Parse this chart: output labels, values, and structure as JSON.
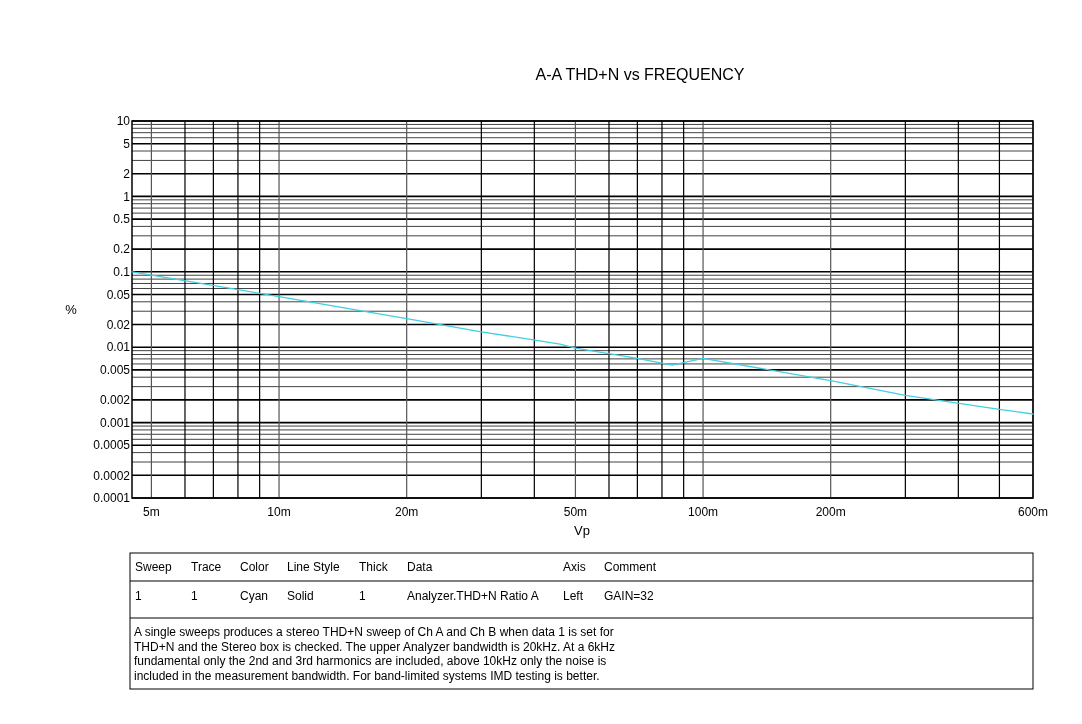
{
  "chart_data": {
    "type": "line",
    "title": "A-A THD+N vs FREQUENCY",
    "xlabel": "Vp",
    "ylabel": "%",
    "log": "xy",
    "grid": true,
    "line_style": "solid",
    "xlim": [
      4.5,
      600
    ],
    "xticks": [
      {
        "value": 5,
        "label": "5m"
      },
      {
        "value": 6,
        "label": null
      },
      {
        "value": 7,
        "label": null
      },
      {
        "value": 8,
        "label": null
      },
      {
        "value": 9,
        "label": null
      },
      {
        "value": 10,
        "label": "10m"
      },
      {
        "value": 20,
        "label": "20m"
      },
      {
        "value": 30,
        "label": null
      },
      {
        "value": 40,
        "label": null
      },
      {
        "value": 50,
        "label": "50m"
      },
      {
        "value": 60,
        "label": null
      },
      {
        "value": 70,
        "label": null
      },
      {
        "value": 80,
        "label": null
      },
      {
        "value": 90,
        "label": null
      },
      {
        "value": 100,
        "label": "100m"
      },
      {
        "value": 200,
        "label": "200m"
      },
      {
        "value": 300,
        "label": null
      },
      {
        "value": 400,
        "label": null
      },
      {
        "value": 500,
        "label": null
      },
      {
        "value": 600,
        "label": "600m"
      }
    ],
    "ylim": [
      0.0001,
      10
    ],
    "yticks": [
      0.0001,
      0.0002,
      {
        "value": 0.0003,
        "label": null
      },
      {
        "value": 0.0004,
        "label": null
      },
      0.0005,
      {
        "value": 0.0006,
        "label": null
      },
      {
        "value": 0.0007,
        "label": null
      },
      {
        "value": 0.0008,
        "label": null
      },
      {
        "value": 0.0009,
        "label": null
      },
      0.001,
      0.002,
      {
        "value": 0.003,
        "label": null
      },
      {
        "value": 0.004,
        "label": null
      },
      0.005,
      {
        "value": 0.006,
        "label": null
      },
      {
        "value": 0.007,
        "label": null
      },
      {
        "value": 0.008,
        "label": null
      },
      {
        "value": 0.009,
        "label": null
      },
      0.01,
      0.02,
      {
        "value": 0.03,
        "label": null
      },
      {
        "value": 0.04,
        "label": null
      },
      0.05,
      {
        "value": 0.06,
        "label": null
      },
      {
        "value": 0.07,
        "label": null
      },
      {
        "value": 0.08,
        "label": null
      },
      {
        "value": 0.09,
        "label": null
      },
      0.1,
      0.2,
      {
        "value": 0.3,
        "label": null
      },
      {
        "value": 0.4,
        "label": null
      },
      0.5,
      {
        "value": 0.6,
        "label": null
      },
      {
        "value": 0.7,
        "label": null
      },
      {
        "value": 0.8,
        "label": null
      },
      {
        "value": 0.9,
        "label": null
      },
      1,
      2,
      {
        "value": 3,
        "label": null
      },
      {
        "value": 4,
        "label": null
      },
      5,
      {
        "value": 6,
        "label": null
      },
      {
        "value": 7,
        "label": null
      },
      {
        "value": 8,
        "label": null
      },
      {
        "value": 9,
        "label": null
      },
      10
    ],
    "series": [
      {
        "color": "#40d0e0",
        "x": [
          4.5,
          10,
          20,
          30,
          46,
          50,
          70,
          84.5,
          100,
          200,
          300,
          500,
          600
        ],
        "values": [
          0.1,
          0.047,
          0.024,
          0.016,
          0.011,
          0.0097,
          0.0071,
          0.0058,
          0.0071,
          0.0036,
          0.0023,
          0.0015,
          0.0013
        ]
      }
    ],
    "annotations": [
      "Sweep",
      "Trace",
      "Color",
      "Line Style",
      "Thick",
      "Data",
      "Axis",
      "Comment",
      "1",
      "1",
      "Cyan",
      "Solid",
      "1",
      "Analyzer.THD+N Ratio A",
      "Left",
      "GAIN=32",
      "A single sweeps produces a stereo THD+N sweep of Ch A and Ch B when data 1 is set for",
      "THD+N and the Stereo box is checked.  The upper Analyzer bandwidth is 20kHz.  At a 6kHz",
      "fundamental only the 2nd and 3rd harmonics are included, above 10kHz only the noise is",
      "included in the measurement bandwidth.  For band-limited systems IMD testing is better."
    ]
  }
}
